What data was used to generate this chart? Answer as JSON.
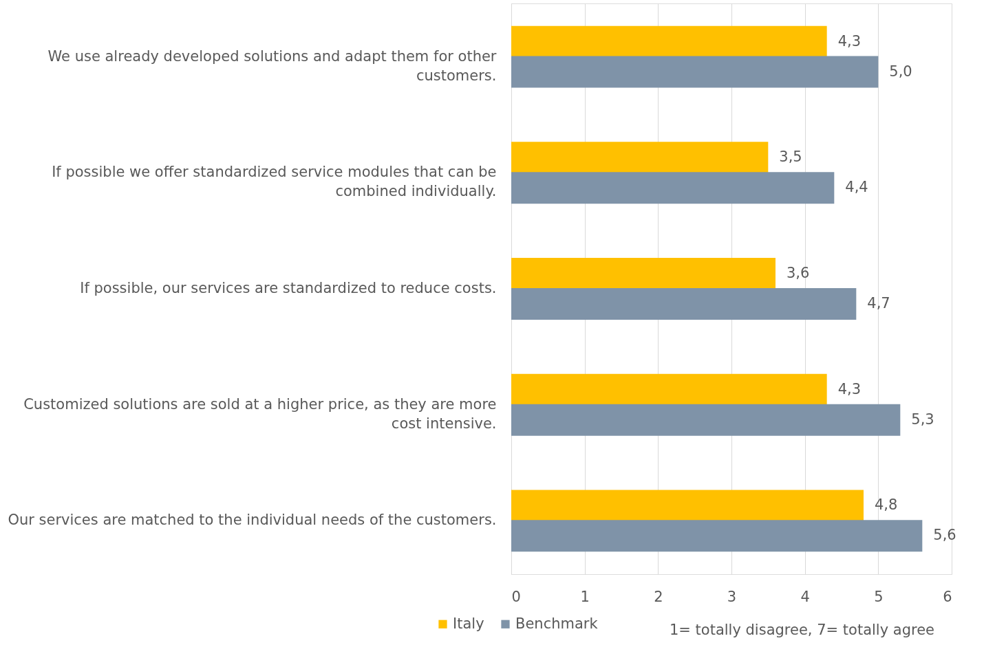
{
  "chart_data": {
    "type": "bar",
    "orientation": "horizontal",
    "categories": [
      "We use already developed solutions and adapt them for other customers.",
      "If possible we offer standardized service modules that can be combined individually.",
      "If possible, our services are standardized to reduce costs.",
      "Customized solutions are sold at a higher price, as they are more cost intensive.",
      "Our services are matched to the individual needs of the customers."
    ],
    "series": [
      {
        "name": "Italy",
        "color": "#ffc000",
        "values": [
          4.3,
          3.5,
          3.6,
          4.3,
          4.8
        ],
        "value_labels": [
          "4,3",
          "3,5",
          "3,6",
          "4,3",
          "4,8"
        ]
      },
      {
        "name": "Benchmark",
        "color": "#7f93a8",
        "values": [
          5.0,
          4.4,
          4.7,
          5.3,
          5.6
        ],
        "value_labels": [
          "5,0",
          "4,4",
          "4,7",
          "5,3",
          "5,6"
        ]
      }
    ],
    "xlim": [
      0,
      6
    ],
    "xticks": [
      0,
      1,
      2,
      3,
      4,
      5,
      6
    ],
    "grid": "x",
    "legend": "bottom",
    "annotations": [
      "1= totally disagree, 7= totally agree"
    ]
  }
}
